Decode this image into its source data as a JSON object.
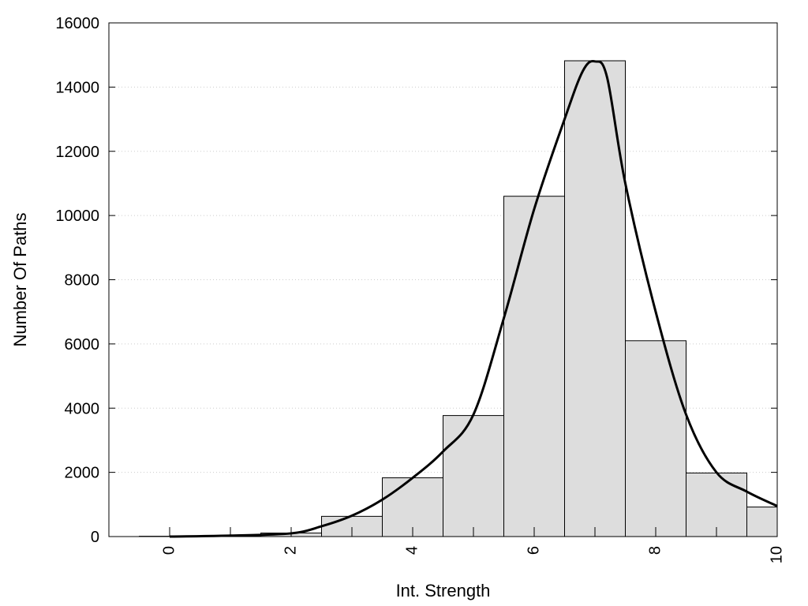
{
  "chart_data": {
    "type": "bar",
    "title": "",
    "xlabel": "Int. Strength",
    "ylabel": "Number Of Paths",
    "xlim": [
      -1,
      10
    ],
    "ylim": [
      0,
      16000
    ],
    "x_ticks": [
      0,
      2,
      4,
      6,
      8,
      10
    ],
    "y_ticks": [
      0,
      2000,
      4000,
      6000,
      8000,
      10000,
      12000,
      14000,
      16000
    ],
    "grid": "horizontal dotted",
    "legend": "none",
    "bar_width": 1,
    "bars": [
      {
        "x": 0,
        "value": 10
      },
      {
        "x": 1,
        "value": 30
      },
      {
        "x": 2,
        "value": 110
      },
      {
        "x": 3,
        "value": 630
      },
      {
        "x": 4,
        "value": 1830
      },
      {
        "x": 5,
        "value": 3770
      },
      {
        "x": 6,
        "value": 10600
      },
      {
        "x": 7,
        "value": 14820
      },
      {
        "x": 8,
        "value": 6100
      },
      {
        "x": 9,
        "value": 1980
      },
      {
        "x": 10,
        "value": 920
      }
    ],
    "curve": {
      "x": [
        0,
        1,
        2,
        2.5,
        3,
        3.5,
        4,
        4.5,
        5,
        5.5,
        6,
        6.5,
        6.8,
        7,
        7.2,
        7.5,
        8,
        8.5,
        9,
        9.5,
        10
      ],
      "y": [
        0,
        30,
        100,
        320,
        650,
        1150,
        1830,
        2650,
        3800,
        6800,
        10200,
        13000,
        14500,
        14800,
        14300,
        11000,
        7000,
        3800,
        2000,
        1400,
        950
      ]
    },
    "colors": {
      "bar_fill": "#dddddd",
      "bar_stroke": "#000000",
      "curve": "#000000",
      "grid": "#cccccc"
    }
  }
}
